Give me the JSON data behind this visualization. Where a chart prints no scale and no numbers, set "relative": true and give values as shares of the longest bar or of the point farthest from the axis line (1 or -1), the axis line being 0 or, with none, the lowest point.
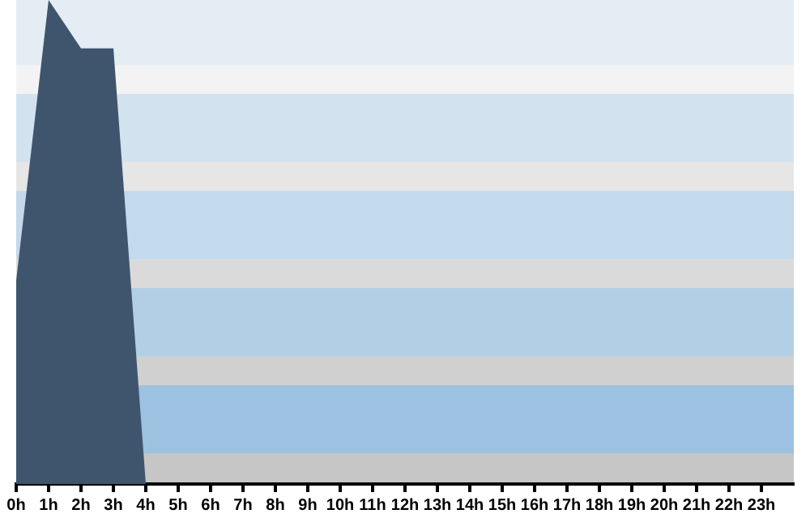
{
  "chart_data": {
    "type": "area",
    "relative": true,
    "xlim": [
      0,
      24
    ],
    "xticks": [
      {
        "value": 0,
        "label": "0h"
      },
      {
        "value": 1,
        "label": "1h"
      },
      {
        "value": 2,
        "label": "2h"
      },
      {
        "value": 3,
        "label": "3h"
      },
      {
        "value": 4,
        "label": "4h"
      },
      {
        "value": 5,
        "label": "5h"
      },
      {
        "value": 6,
        "label": "6h"
      },
      {
        "value": 7,
        "label": "7h"
      },
      {
        "value": 8,
        "label": "8h"
      },
      {
        "value": 9,
        "label": "9h"
      },
      {
        "value": 10,
        "label": "10h"
      },
      {
        "value": 11,
        "label": "11h"
      },
      {
        "value": 12,
        "label": "12h"
      },
      {
        "value": 13,
        "label": "13h"
      },
      {
        "value": 14,
        "label": "14h"
      },
      {
        "value": 15,
        "label": "15h"
      },
      {
        "value": 16,
        "label": "16h"
      },
      {
        "value": 17,
        "label": "17h"
      },
      {
        "value": 18,
        "label": "18h"
      },
      {
        "value": 19,
        "label": "19h"
      },
      {
        "value": 20,
        "label": "20h"
      },
      {
        "value": 21,
        "label": "21h"
      },
      {
        "value": 22,
        "label": "22h"
      },
      {
        "value": 23,
        "label": "23h"
      }
    ],
    "x": [
      0,
      1,
      2,
      3,
      4,
      5,
      6,
      7,
      8,
      9,
      10,
      11,
      12,
      13,
      14,
      15,
      16,
      17,
      18,
      19,
      20,
      21,
      22,
      23
    ],
    "series": [
      {
        "color": "#3f556e",
        "values": [
          0.42,
          1,
          0.9,
          0.9,
          0,
          0,
          0,
          0,
          0,
          0,
          0,
          0,
          0,
          0,
          0,
          0,
          0,
          0,
          0,
          0,
          0,
          0,
          0,
          0
        ]
      }
    ],
    "grid": false,
    "legend": false
  }
}
